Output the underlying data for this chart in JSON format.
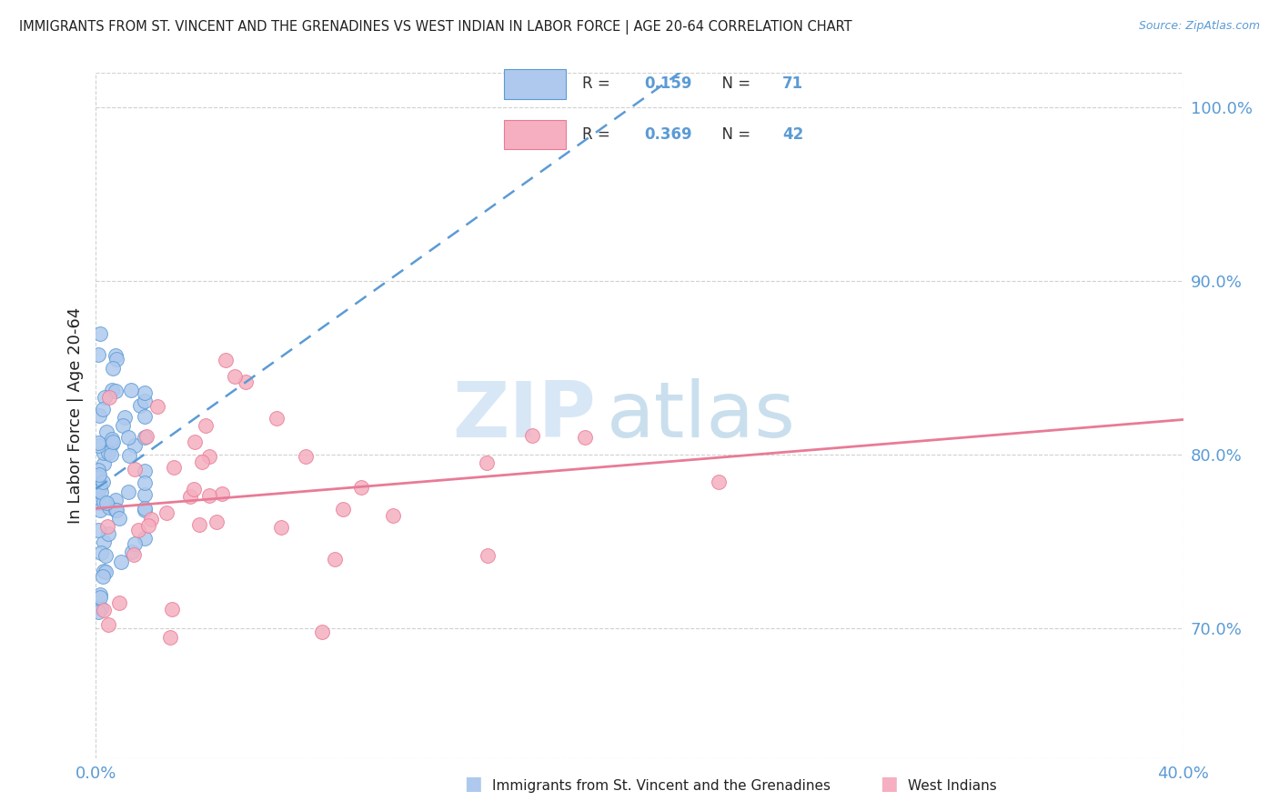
{
  "title": "IMMIGRANTS FROM ST. VINCENT AND THE GRENADINES VS WEST INDIAN IN LABOR FORCE | AGE 20-64 CORRELATION CHART",
  "source": "Source: ZipAtlas.com",
  "ylabel": "In Labor Force | Age 20-64",
  "xlim": [
    0.0,
    0.4
  ],
  "ylim": [
    0.625,
    1.02
  ],
  "xticks": [
    0.0,
    0.05,
    0.1,
    0.15,
    0.2,
    0.25,
    0.3,
    0.35,
    0.4
  ],
  "xticklabels": [
    "0.0%",
    "",
    "",
    "",
    "",
    "",
    "",
    "",
    "40.0%"
  ],
  "yticks_right": [
    0.7,
    0.8,
    0.9,
    1.0
  ],
  "yticklabels_right": [
    "70.0%",
    "80.0%",
    "90.0%",
    "100.0%"
  ],
  "R1": 0.159,
  "N1": 71,
  "R2": 0.369,
  "N2": 42,
  "color1": "#aec9ed",
  "color2": "#f5afc0",
  "edge_color1": "#5b9bd5",
  "edge_color2": "#e87b96",
  "line_color1": "#5b9bd5",
  "line_color2": "#e87b96",
  "legend_label1": "Immigrants from St. Vincent and the Grenadines",
  "legend_label2": "West Indians",
  "watermark_zip": "ZIP",
  "watermark_atlas": "atlas",
  "bg_color": "#ffffff",
  "grid_color": "#d0d0d0",
  "tick_color": "#5b9bd5",
  "title_color": "#222222",
  "label_color": "#222222"
}
